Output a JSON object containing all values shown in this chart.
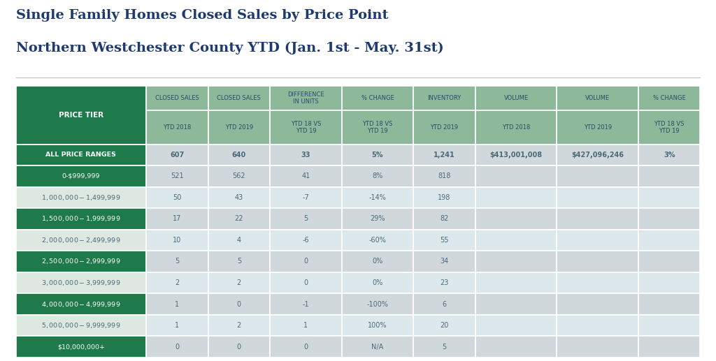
{
  "title_line1": "Single Family Homes Closed Sales by Price Point",
  "title_line2": "Northern Westchester County YTD (Jan. 1st - May. 31st)",
  "title_color": "#1e3a6e",
  "background_color": "#ffffff",
  "col_headers_row1": [
    "CLOSED SALES",
    "CLOSED SALES",
    "DIFFERENCE\nIN UNITS",
    "% CHANGE",
    "INVENTORY",
    "VOLUME",
    "VOLUME",
    "% CHANGE"
  ],
  "col_headers_row2": [
    "YTD 2018",
    "YTD 2019",
    "YTD 18 VS\nYTD 19",
    "YTD 18 VS\nYTD 19",
    "YTD 2019",
    "YTD 2018",
    "YTD 2019",
    "YTD 18 VS\nYTD 19"
  ],
  "price_tier_label": "PRICE TIER",
  "header_bg_dark_green": "#1e7a4a",
  "header_bg_light_green": "#8db89a",
  "data_cell_bg_light": "#c8d4d8",
  "data_cell_bg_dark": "#b8c8cc",
  "header_text_color": "#2a4a6a",
  "data_text_color": "#4a6a7a",
  "rows": [
    {
      "tier": "ALL PRICE RANGES",
      "tier_bg": "#1e7a4a",
      "tier_text": "#ffffff",
      "tier_bold": true,
      "data_bg": "#d0d8dc",
      "values": [
        "607",
        "640",
        "33",
        "5%",
        "1,241",
        "$413,001,008",
        "$427,096,246",
        "3%"
      ]
    },
    {
      "tier": "0-$999,999",
      "tier_bg": "#1e7a4a",
      "tier_text": "#ffffff",
      "tier_bold": false,
      "data_bg": "#d0d8dc",
      "values": [
        "521",
        "562",
        "41",
        "8%",
        "818",
        "",
        "",
        ""
      ]
    },
    {
      "tier": "$1,000,000 - $1,499,999",
      "tier_bg": "#dce8e0",
      "tier_text": "#4a6a7a",
      "tier_bold": false,
      "data_bg": "#dce8ec",
      "values": [
        "50",
        "43",
        "-7",
        "-14%",
        "198",
        "",
        "",
        ""
      ]
    },
    {
      "tier": "$1,500,000 - $1,999,999",
      "tier_bg": "#1e7a4a",
      "tier_text": "#ffffff",
      "tier_bold": false,
      "data_bg": "#d0d8dc",
      "values": [
        "17",
        "22",
        "5",
        "29%",
        "82",
        "",
        "",
        ""
      ]
    },
    {
      "tier": "$2,000,000 - $2,499,999",
      "tier_bg": "#dce8e0",
      "tier_text": "#4a6a7a",
      "tier_bold": false,
      "data_bg": "#dce8ec",
      "values": [
        "10",
        "4",
        "-6",
        "-60%",
        "55",
        "",
        "",
        ""
      ]
    },
    {
      "tier": "$2,500,000 - $2,999,999",
      "tier_bg": "#1e7a4a",
      "tier_text": "#ffffff",
      "tier_bold": false,
      "data_bg": "#d0d8dc",
      "values": [
        "5",
        "5",
        "0",
        "0%",
        "34",
        "",
        "",
        ""
      ]
    },
    {
      "tier": "$3,000,000 - $3,999,999",
      "tier_bg": "#dce8e0",
      "tier_text": "#4a6a7a",
      "tier_bold": false,
      "data_bg": "#dce8ec",
      "values": [
        "2",
        "2",
        "0",
        "0%",
        "23",
        "",
        "",
        ""
      ]
    },
    {
      "tier": "$4,000,000 - $4,999,999",
      "tier_bg": "#1e7a4a",
      "tier_text": "#ffffff",
      "tier_bold": false,
      "data_bg": "#d0d8dc",
      "values": [
        "1",
        "0",
        "-1",
        "-100%",
        "6",
        "",
        "",
        ""
      ]
    },
    {
      "tier": "$5,000,000 - $9,999,999",
      "tier_bg": "#dce8e0",
      "tier_text": "#4a6a7a",
      "tier_bold": false,
      "data_bg": "#dce8ec",
      "values": [
        "1",
        "2",
        "1",
        "100%",
        "20",
        "",
        "",
        ""
      ]
    },
    {
      "tier": "$10,000,000+",
      "tier_bg": "#1e7a4a",
      "tier_text": "#ffffff",
      "tier_bold": false,
      "data_bg": "#d0d8dc",
      "values": [
        "0",
        "0",
        "0",
        "N/A",
        "5",
        "",
        "",
        ""
      ]
    }
  ]
}
